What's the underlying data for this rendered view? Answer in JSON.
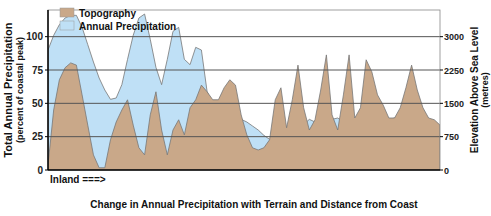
{
  "chart_data": {
    "type": "area",
    "title": "Change in Annual Precipitation with Terrain and Distance from Coast",
    "xlabel": "Inland ===>",
    "ylabel": [
      "Total Annual Precipitation",
      "(percent of coastal peak)"
    ],
    "y2label": [
      "Elevation Above Sea Level",
      "(metres)"
    ],
    "x": [
      0,
      6,
      12,
      18,
      24,
      30,
      36,
      42,
      48,
      54,
      60,
      66,
      72,
      78,
      84,
      90,
      96,
      102,
      108,
      114,
      120,
      126,
      132,
      138,
      144,
      150,
      156,
      162,
      168,
      174,
      180,
      186,
      192,
      198,
      204,
      210,
      216,
      222,
      228,
      234,
      240,
      246,
      252,
      258,
      264,
      270,
      276,
      282,
      288,
      294,
      300,
      306,
      312,
      318,
      324,
      330,
      336,
      342,
      348,
      354,
      360,
      366,
      372,
      378,
      384,
      390,
      396,
      402,
      408,
      414
    ],
    "xlim": [
      0,
      414
    ],
    "ylim": [
      0,
      120
    ],
    "yticks": [
      0,
      25,
      50,
      75,
      100
    ],
    "y2lim": [
      0,
      3600
    ],
    "y2ticks": [
      0,
      750,
      1500,
      2250,
      3000
    ],
    "grid": true,
    "legend": "upper left",
    "tick_labels": "y",
    "series": [
      {
        "name": "Topography",
        "color": "#c9a889",
        "axis": "y2",
        "values": [
          110,
          1350,
          2030,
          2300,
          2410,
          2360,
          1690,
          1010,
          340,
          50,
          50,
          680,
          1080,
          1350,
          1580,
          1010,
          500,
          340,
          1240,
          1760,
          900,
          340,
          900,
          1130,
          790,
          1400,
          1580,
          1910,
          1760,
          1580,
          1580,
          1850,
          2030,
          1910,
          1240,
          790,
          500,
          450,
          500,
          680,
          1580,
          1850,
          950,
          1580,
          2360,
          1400,
          900,
          1130,
          1800,
          2590,
          1240,
          900,
          1690,
          2590,
          1170,
          1400,
          2480,
          2210,
          1690,
          1460,
          1170,
          1170,
          1400,
          1850,
          2360,
          1800,
          1400,
          1170,
          1130,
          1010
        ]
      },
      {
        "name": "Annual Precipitation",
        "color": "#bfe0f6",
        "values": [
          90,
          101,
          109,
          114,
          116,
          116,
          107,
          94,
          81,
          69,
          60,
          53,
          54,
          64,
          83,
          101,
          114,
          117,
          98,
          77,
          64,
          83,
          104,
          107,
          83,
          79,
          92,
          90,
          59,
          49,
          45,
          44,
          41,
          40,
          38,
          36,
          33,
          30,
          26,
          23,
          23,
          26,
          28,
          29,
          31,
          34,
          38,
          36,
          34,
          35,
          38,
          39,
          36,
          32,
          31,
          29,
          26,
          30,
          33,
          35,
          38,
          39,
          35,
          32,
          32,
          36,
          38,
          35,
          32,
          28
        ]
      }
    ]
  }
}
